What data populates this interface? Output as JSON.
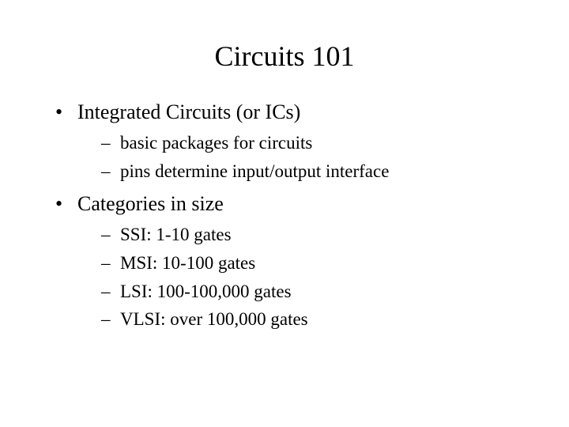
{
  "title": "Circuits 101",
  "bullets": [
    {
      "text": "Integrated Circuits (or ICs)",
      "sub": [
        "basic packages for circuits",
        "pins determine input/output interface"
      ]
    },
    {
      "text": "Categories in size",
      "sub": [
        "SSI: 1-10 gates",
        "MSI: 10-100 gates",
        "LSI: 100-100,000 gates",
        "VLSI: over 100,000 gates"
      ]
    }
  ],
  "style": {
    "background_color": "#ffffff",
    "text_color": "#000000",
    "font_family": "Times New Roman",
    "title_fontsize": 36,
    "bullet_fontsize": 26,
    "sub_fontsize": 23,
    "bullet_marker": "•",
    "sub_marker": "–"
  }
}
